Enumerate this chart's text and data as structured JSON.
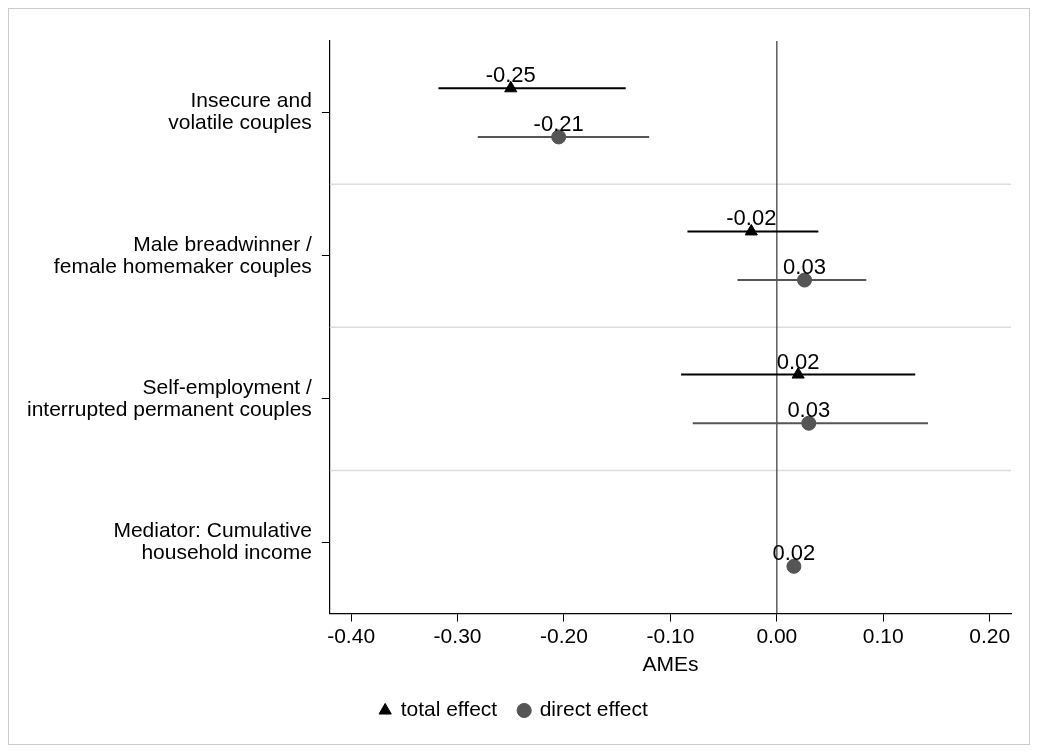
{
  "chart_data": {
    "type": "scatter",
    "orientation": "horizontal",
    "xlabel": "AMEs",
    "categories": [
      "Insecure and volatile couples",
      "Male breadwinner / female homemaker couples",
      "Self-employment / interrupted permanent couples",
      "Mediator: Cumulative household income"
    ],
    "series": [
      {
        "name": "total effect",
        "color": "#000000",
        "marker": "triangle",
        "values": [
          -0.25,
          -0.024,
          0.02,
          null
        ],
        "errors": [
          [
            -0.318,
            -0.142
          ],
          [
            -0.084,
            0.039
          ],
          [
            -0.09,
            0.13
          ],
          null
        ],
        "value_labels": [
          "-0.25",
          "-0.02",
          "0.02",
          null
        ]
      },
      {
        "name": "direct effect",
        "color": "#555555",
        "marker": "circle",
        "values": [
          -0.205,
          0.026,
          0.03,
          0.016
        ],
        "errors": [
          [
            -0.281,
            -0.12
          ],
          [
            -0.037,
            0.084
          ],
          [
            -0.079,
            0.142
          ],
          null
        ],
        "value_labels": [
          "-0.21",
          "0.03",
          "0.03",
          "0.02"
        ]
      }
    ],
    "xlim": [
      -0.42,
      0.22
    ],
    "xticks": [
      {
        "value": -0.4,
        "label": "-0.40"
      },
      {
        "value": -0.3,
        "label": "-0.30"
      },
      {
        "value": -0.2,
        "label": "-0.20"
      },
      {
        "value": -0.1,
        "label": "-0.10"
      },
      {
        "value": 0,
        "label": "0.00"
      },
      {
        "value": 0.1,
        "label": "0.10"
      },
      {
        "value": 0.2,
        "label": "0.20"
      }
    ],
    "ref_lines": [
      {
        "axis": "x",
        "value": 0,
        "color": "#333333"
      }
    ],
    "grid": "y",
    "legend": "bottom"
  }
}
